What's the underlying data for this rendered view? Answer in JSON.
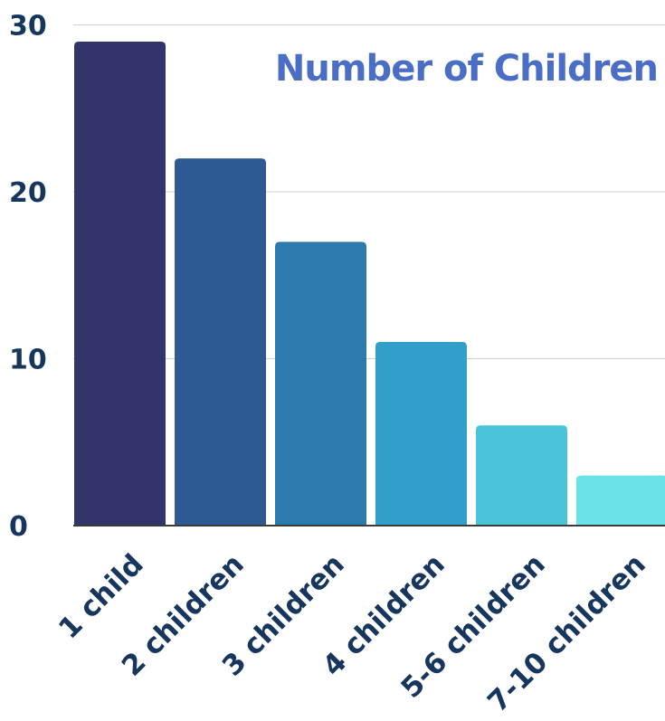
{
  "chart_data": {
    "type": "bar",
    "title": "Number of Children",
    "xlabel": "",
    "ylabel": "",
    "categories": [
      "1 child",
      "2 children",
      "3 children",
      "4 children",
      "5-6 children",
      "7-10 children"
    ],
    "values": [
      29,
      22,
      17,
      11,
      6,
      3
    ],
    "ylim": [
      0,
      30
    ],
    "yticks": [
      0,
      10,
      20,
      30
    ],
    "grid": true,
    "legend": "none",
    "colors": {
      "bars": [
        "#31356a",
        "#2d5a92",
        "#2d7bad",
        "#319fca",
        "#4bc3d9",
        "#69e3e7"
      ],
      "title": "#4a6dc6",
      "text": "#17365d",
      "grid": "#cfcfcf",
      "axis": "#3a3a3a"
    }
  }
}
